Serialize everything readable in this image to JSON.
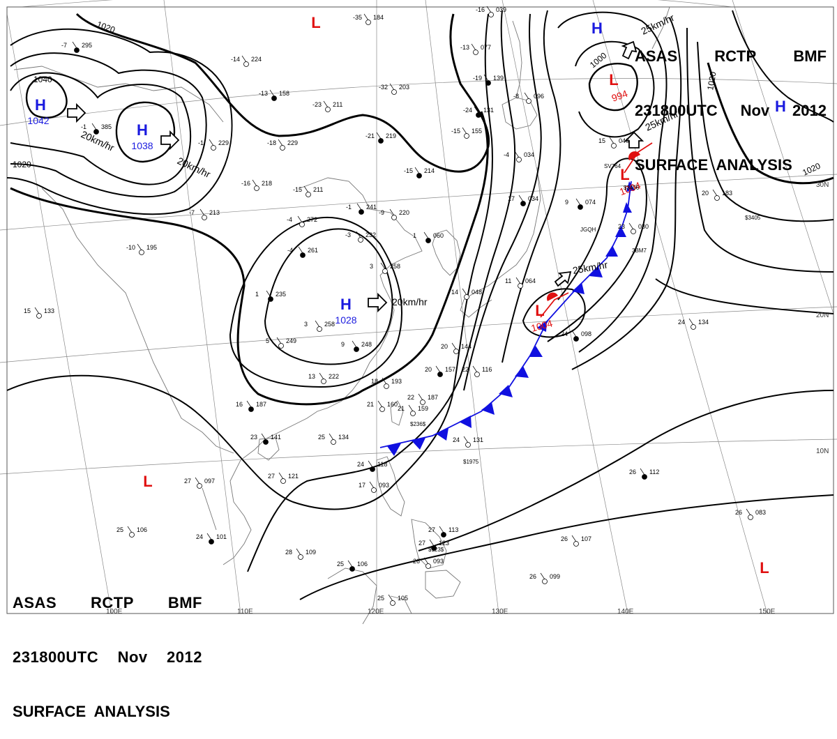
{
  "header": {
    "title_line1": [
      "ASAS",
      "RCTP",
      "BMF"
    ],
    "title_line2": [
      "231800UTC",
      "Nov",
      "2012"
    ],
    "title_line3": "SURFACE  ANALYSIS"
  },
  "colors": {
    "high": "#1a1adf",
    "low": "#e01010",
    "isobar": "#000000",
    "cold_front": "#1010e0",
    "warm_front": "#e01010",
    "grid": "#888888",
    "coast": "#777777"
  },
  "pressure_centers": [
    {
      "type": "H",
      "value": "1042"
    },
    {
      "type": "H",
      "value": "1038"
    },
    {
      "type": "H",
      "value": "1028"
    },
    {
      "type": "H",
      "value": ""
    },
    {
      "type": "H",
      "value": ""
    },
    {
      "type": "L",
      "value": "994"
    },
    {
      "type": "L",
      "value": "1004"
    },
    {
      "type": "L",
      "value": "1004"
    },
    {
      "type": "L",
      "value": ""
    },
    {
      "type": "L",
      "value": ""
    },
    {
      "type": "L",
      "value": ""
    }
  ],
  "isobar_labels": [
    "1020",
    "1040",
    "1020",
    "1000",
    "1020",
    "1020"
  ],
  "motion_labels": [
    "20km/hr",
    "20km/hr",
    "20km/hr",
    "25km/hr",
    "25km/hr",
    "25km/hr"
  ],
  "lon_labels": [
    "100E",
    "110E",
    "120E",
    "130E",
    "140E",
    "150E"
  ],
  "lat_labels": [
    "30N",
    "20N",
    "10N"
  ],
  "stations": [
    {
      "t": "-7",
      "p": "295"
    },
    {
      "t": "-35",
      "p": "184"
    },
    {
      "t": "-14",
      "p": "224"
    },
    {
      "t": "-13",
      "p": "158"
    },
    {
      "t": "-23",
      "p": "211"
    },
    {
      "t": "-32",
      "p": "203"
    },
    {
      "t": "-1",
      "p": "385"
    },
    {
      "t": "-1",
      "p": "229"
    },
    {
      "t": "-18",
      "p": "229"
    },
    {
      "t": "-21",
      "p": "219"
    },
    {
      "t": "-16",
      "p": "218"
    },
    {
      "t": "-15",
      "p": "211"
    },
    {
      "t": "-15",
      "p": "214"
    },
    {
      "t": "-7",
      "p": "213"
    },
    {
      "t": "-4",
      "p": "272"
    },
    {
      "t": "-1",
      "p": "241"
    },
    {
      "t": "-9",
      "p": "220"
    },
    {
      "t": "-3",
      "p": "232"
    },
    {
      "t": "-4",
      "p": "261"
    },
    {
      "t": "-10",
      "p": "195"
    },
    {
      "t": "3",
      "p": "258"
    },
    {
      "t": "1",
      "p": "235"
    },
    {
      "t": "5",
      "p": "249"
    },
    {
      "t": "3",
      "p": "258"
    },
    {
      "t": "9",
      "p": "248"
    },
    {
      "t": "13",
      "p": "222"
    },
    {
      "t": "15",
      "p": "133"
    },
    {
      "t": "16",
      "p": "187"
    },
    {
      "t": "18",
      "p": "193"
    },
    {
      "t": "21",
      "p": "160"
    },
    {
      "t": "20",
      "p": "157"
    },
    {
      "t": "20",
      "p": "144"
    },
    {
      "t": "22",
      "p": "116"
    },
    {
      "t": "23",
      "p": "141"
    },
    {
      "t": "25",
      "p": "134"
    },
    {
      "t": "24",
      "p": "131"
    },
    {
      "t": "24",
      "p": "118"
    },
    {
      "t": "27",
      "p": "097"
    },
    {
      "t": "27",
      "p": "121"
    },
    {
      "t": "24",
      "p": "101"
    },
    {
      "t": "25",
      "p": "106"
    },
    {
      "t": "28",
      "p": "109"
    },
    {
      "t": "25",
      "p": "106"
    },
    {
      "t": "25",
      "p": "105"
    },
    {
      "t": "17",
      "p": "093"
    },
    {
      "t": "27",
      "p": "113"
    },
    {
      "t": "26",
      "p": "107"
    },
    {
      "t": "26",
      "p": "099"
    },
    {
      "t": "26",
      "p": "112"
    },
    {
      "t": "26",
      "p": "083"
    },
    {
      "t": "24",
      "p": "134"
    },
    {
      "t": "24",
      "p": "098"
    },
    {
      "t": "23",
      "p": "030"
    },
    {
      "t": "20",
      "p": "183"
    },
    {
      "t": "9",
      "p": "074"
    },
    {
      "t": "15",
      "p": "040"
    },
    {
      "t": "-15",
      "p": "155"
    },
    {
      "t": "-24",
      "p": "131"
    },
    {
      "t": "-8",
      "p": "096"
    },
    {
      "t": "-13",
      "p": "077"
    },
    {
      "t": "-19",
      "p": "139"
    },
    {
      "t": "-16",
      "p": "039"
    },
    {
      "t": "-4",
      "p": "034"
    },
    {
      "t": "17",
      "p": "034"
    },
    {
      "t": "14",
      "p": "048"
    },
    {
      "t": "11",
      "p": "064"
    },
    {
      "t": "1",
      "p": "060"
    },
    {
      "t": "22",
      "p": "187"
    },
    {
      "t": "21",
      "p": "159"
    },
    {
      "t": "27",
      "p": "123"
    },
    {
      "t": "26",
      "p": "093"
    }
  ],
  "station_ids": [
    "JGQH",
    "SV764",
    "$3406",
    "$3405",
    "$1975",
    "$236$",
    "$123$",
    "3BM7"
  ]
}
